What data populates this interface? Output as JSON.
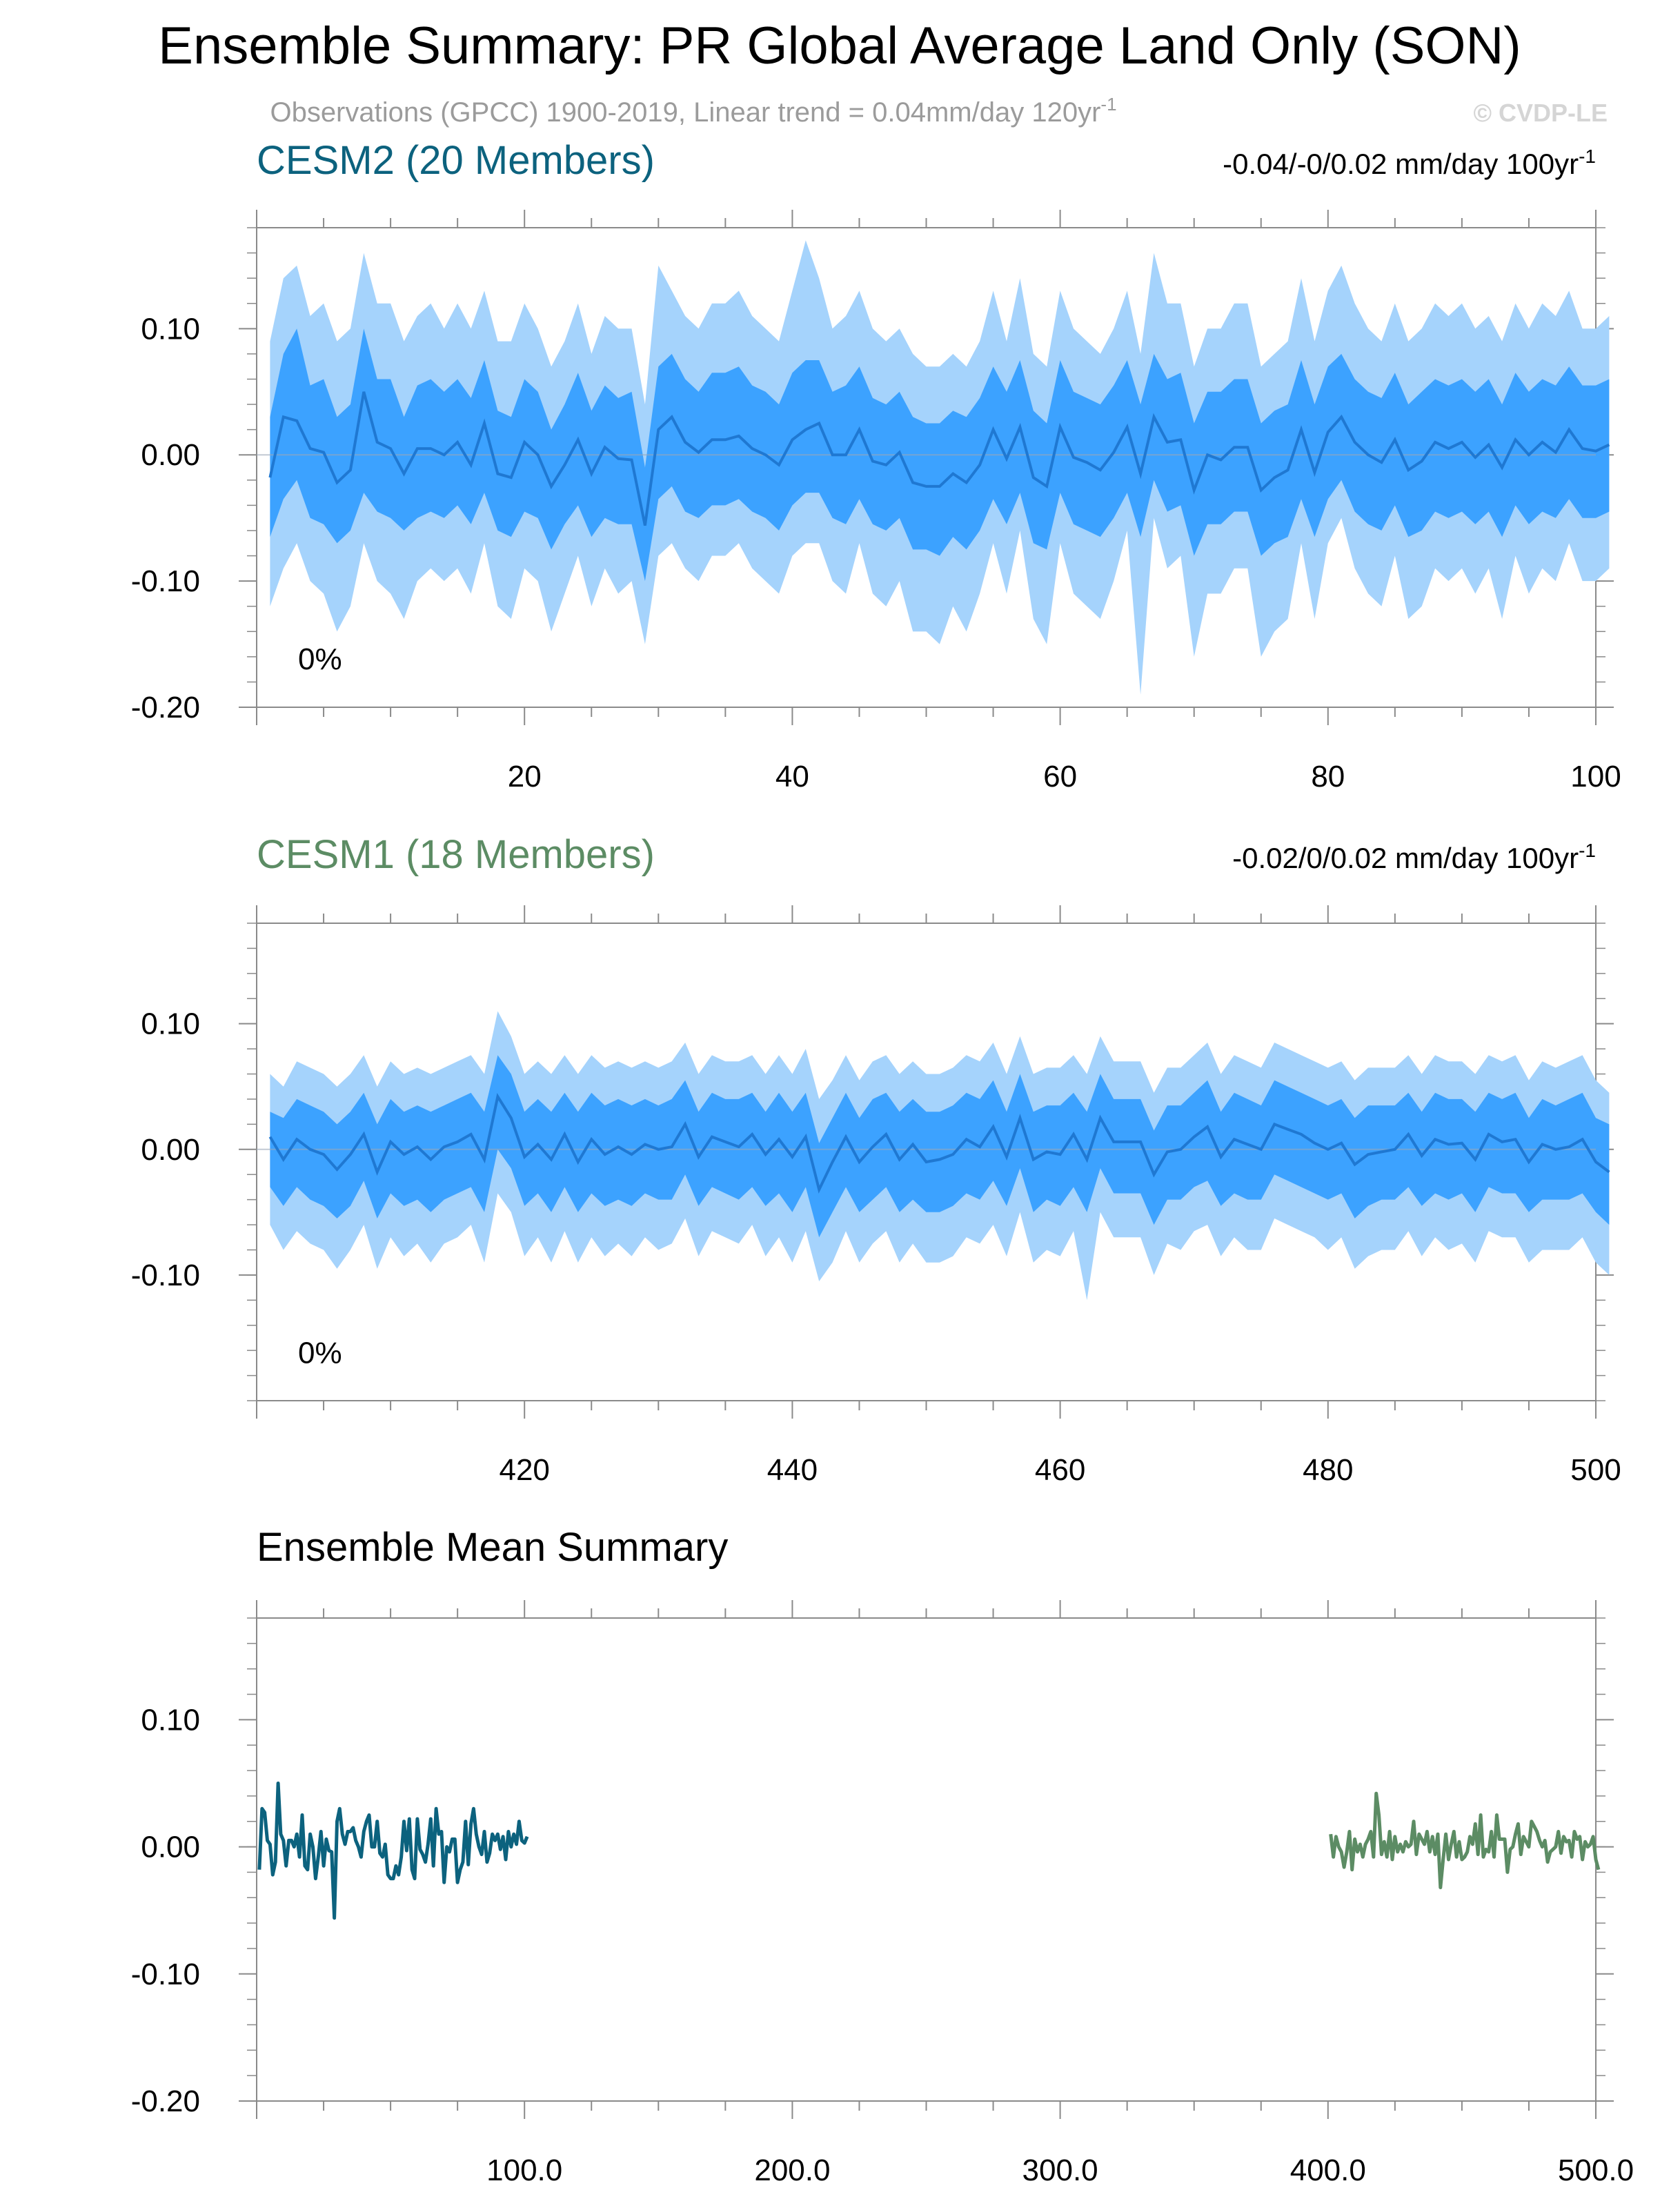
{
  "figure": {
    "title": "Ensemble Summary: PR Global Average Land Only (SON)",
    "subtitle": "Observations (GPCC) 1900-2019, Linear trend = 0.04mm/day 120yr",
    "subtitle_sup": "-1",
    "watermark": "© CVDP-LE"
  },
  "colors": {
    "outer_band": "#a5d3fc",
    "inner_band": "#3ca2ff",
    "mean_line": "#1f78d2",
    "cesm2": "#0c627e",
    "cesm1": "#5c8c64",
    "zero_line": "#9aa8b8"
  },
  "chart_data": [
    {
      "type": "area",
      "name": "CESM2 (20 Members)",
      "panel_title": "CESM2 (20 Members)",
      "trend_label": "-0.04/-0/0.02 mm/day 100yr",
      "trend_sup": "-1",
      "percent_label": "0%",
      "xlim": [
        0,
        100
      ],
      "ylim": [
        -0.2,
        0.18
      ],
      "xticks": [
        20,
        40,
        60,
        80,
        100
      ],
      "xtick_labels": [
        "20",
        "40",
        "60",
        "80",
        "100"
      ],
      "yticks": [
        -0.2,
        -0.1,
        0.0,
        0.1
      ],
      "ytick_labels": [
        "-0.20",
        "-0.10",
        "0.00",
        "0.10"
      ],
      "x_start": 1,
      "mean": [
        -0.018,
        0.03,
        0.027,
        0.005,
        0.002,
        -0.022,
        -0.012,
        0.05,
        0.01,
        0.005,
        -0.015,
        0.005,
        0.005,
        0.0,
        0.01,
        -0.008,
        0.025,
        -0.015,
        -0.018,
        0.01,
        0.0,
        -0.025,
        -0.008,
        0.012,
        -0.015,
        0.006,
        -0.003,
        -0.004,
        -0.056,
        0.02,
        0.03,
        0.01,
        0.002,
        0.012,
        0.012,
        0.015,
        0.005,
        0.0,
        -0.008,
        0.012,
        0.02,
        0.025,
        0.0,
        0.0,
        0.02,
        -0.005,
        -0.008,
        0.002,
        -0.022,
        -0.025,
        -0.025,
        -0.015,
        -0.022,
        -0.008,
        0.02,
        -0.003,
        0.022,
        -0.018,
        -0.025,
        0.022,
        -0.002,
        -0.006,
        -0.012,
        0.002,
        0.022,
        -0.015,
        0.03,
        0.01,
        0.012,
        -0.028,
        0.0,
        -0.004,
        0.006,
        0.006,
        -0.028,
        -0.018,
        -0.012,
        0.02,
        -0.014,
        0.018,
        0.03,
        0.01,
        0.0,
        -0.006,
        0.012,
        -0.012,
        -0.005,
        0.01,
        0.005,
        0.01,
        -0.002,
        0.008,
        -0.01,
        0.012,
        0.0,
        0.01,
        0.002,
        0.02,
        0.005,
        0.003,
        0.008
      ],
      "p25": [
        -0.065,
        -0.035,
        -0.02,
        -0.05,
        -0.055,
        -0.07,
        -0.06,
        -0.03,
        -0.045,
        -0.05,
        -0.06,
        -0.05,
        -0.045,
        -0.05,
        -0.04,
        -0.055,
        -0.03,
        -0.06,
        -0.065,
        -0.045,
        -0.05,
        -0.075,
        -0.055,
        -0.04,
        -0.065,
        -0.05,
        -0.055,
        -0.055,
        -0.1,
        -0.035,
        -0.025,
        -0.045,
        -0.05,
        -0.04,
        -0.04,
        -0.035,
        -0.045,
        -0.05,
        -0.06,
        -0.04,
        -0.03,
        -0.03,
        -0.05,
        -0.055,
        -0.035,
        -0.055,
        -0.06,
        -0.05,
        -0.075,
        -0.075,
        -0.08,
        -0.065,
        -0.075,
        -0.06,
        -0.035,
        -0.055,
        -0.03,
        -0.07,
        -0.075,
        -0.03,
        -0.055,
        -0.06,
        -0.065,
        -0.05,
        -0.03,
        -0.065,
        -0.02,
        -0.045,
        -0.04,
        -0.08,
        -0.055,
        -0.055,
        -0.045,
        -0.045,
        -0.08,
        -0.07,
        -0.065,
        -0.035,
        -0.065,
        -0.035,
        -0.02,
        -0.045,
        -0.055,
        -0.06,
        -0.04,
        -0.065,
        -0.06,
        -0.045,
        -0.05,
        -0.045,
        -0.055,
        -0.045,
        -0.065,
        -0.04,
        -0.055,
        -0.045,
        -0.05,
        -0.035,
        -0.05,
        -0.05,
        -0.045
      ],
      "p75": [
        0.03,
        0.08,
        0.1,
        0.055,
        0.06,
        0.03,
        0.04,
        0.1,
        0.06,
        0.06,
        0.03,
        0.055,
        0.06,
        0.05,
        0.06,
        0.045,
        0.075,
        0.035,
        0.03,
        0.06,
        0.05,
        0.02,
        0.04,
        0.065,
        0.035,
        0.055,
        0.045,
        0.05,
        -0.01,
        0.07,
        0.08,
        0.06,
        0.05,
        0.065,
        0.065,
        0.07,
        0.055,
        0.05,
        0.04,
        0.065,
        0.075,
        0.075,
        0.05,
        0.055,
        0.07,
        0.045,
        0.04,
        0.05,
        0.03,
        0.025,
        0.025,
        0.035,
        0.03,
        0.045,
        0.07,
        0.05,
        0.075,
        0.035,
        0.025,
        0.075,
        0.05,
        0.045,
        0.04,
        0.055,
        0.075,
        0.04,
        0.08,
        0.06,
        0.065,
        0.025,
        0.05,
        0.05,
        0.06,
        0.06,
        0.025,
        0.035,
        0.04,
        0.075,
        0.04,
        0.07,
        0.08,
        0.06,
        0.05,
        0.045,
        0.065,
        0.04,
        0.05,
        0.06,
        0.055,
        0.06,
        0.05,
        0.06,
        0.04,
        0.065,
        0.05,
        0.06,
        0.055,
        0.07,
        0.055,
        0.055,
        0.06
      ],
      "p05": [
        -0.12,
        -0.09,
        -0.07,
        -0.1,
        -0.11,
        -0.14,
        -0.12,
        -0.07,
        -0.1,
        -0.11,
        -0.13,
        -0.1,
        -0.09,
        -0.1,
        -0.09,
        -0.11,
        -0.07,
        -0.12,
        -0.13,
        -0.09,
        -0.1,
        -0.14,
        -0.11,
        -0.08,
        -0.12,
        -0.09,
        -0.11,
        -0.1,
        -0.15,
        -0.08,
        -0.07,
        -0.09,
        -0.1,
        -0.08,
        -0.08,
        -0.07,
        -0.09,
        -0.1,
        -0.11,
        -0.08,
        -0.07,
        -0.07,
        -0.1,
        -0.11,
        -0.07,
        -0.11,
        -0.12,
        -0.1,
        -0.14,
        -0.14,
        -0.15,
        -0.12,
        -0.14,
        -0.11,
        -0.07,
        -0.11,
        -0.06,
        -0.13,
        -0.15,
        -0.07,
        -0.11,
        -0.12,
        -0.13,
        -0.1,
        -0.06,
        -0.19,
        -0.05,
        -0.09,
        -0.08,
        -0.16,
        -0.11,
        -0.11,
        -0.09,
        -0.09,
        -0.16,
        -0.14,
        -0.13,
        -0.07,
        -0.13,
        -0.07,
        -0.05,
        -0.09,
        -0.11,
        -0.12,
        -0.08,
        -0.13,
        -0.12,
        -0.09,
        -0.1,
        -0.09,
        -0.11,
        -0.09,
        -0.13,
        -0.08,
        -0.11,
        -0.09,
        -0.1,
        -0.07,
        -0.1,
        -0.1,
        -0.09
      ],
      "p95": [
        0.09,
        0.14,
        0.15,
        0.11,
        0.12,
        0.09,
        0.1,
        0.16,
        0.12,
        0.12,
        0.09,
        0.11,
        0.12,
        0.1,
        0.12,
        0.1,
        0.13,
        0.09,
        0.09,
        0.12,
        0.1,
        0.07,
        0.09,
        0.12,
        0.08,
        0.11,
        0.1,
        0.1,
        0.04,
        0.15,
        0.13,
        0.11,
        0.1,
        0.12,
        0.12,
        0.13,
        0.11,
        0.1,
        0.09,
        0.13,
        0.17,
        0.14,
        0.1,
        0.11,
        0.13,
        0.1,
        0.09,
        0.1,
        0.08,
        0.07,
        0.07,
        0.08,
        0.07,
        0.09,
        0.13,
        0.09,
        0.14,
        0.08,
        0.07,
        0.13,
        0.1,
        0.09,
        0.08,
        0.1,
        0.13,
        0.08,
        0.16,
        0.12,
        0.12,
        0.07,
        0.1,
        0.1,
        0.12,
        0.12,
        0.07,
        0.08,
        0.09,
        0.14,
        0.09,
        0.13,
        0.15,
        0.12,
        0.1,
        0.09,
        0.12,
        0.09,
        0.1,
        0.12,
        0.11,
        0.12,
        0.1,
        0.11,
        0.09,
        0.12,
        0.1,
        0.12,
        0.11,
        0.13,
        0.1,
        0.1,
        0.11
      ]
    },
    {
      "type": "area",
      "name": "CESM1 (18 Members)",
      "panel_title": "CESM1 (18 Members)",
      "trend_label": "-0.02/0/0.02 mm/day 100yr",
      "trend_sup": "-1",
      "percent_label": "0%",
      "xlim": [
        400,
        500
      ],
      "ylim": [
        -0.2,
        0.18
      ],
      "xticks": [
        420,
        440,
        460,
        480,
        500
      ],
      "xtick_labels": [
        "420",
        "440",
        "460",
        "480",
        "500"
      ],
      "yticks": [
        -0.1,
        0.0,
        0.1
      ],
      "ytick_labels": [
        "-0.10",
        "0.00",
        "0.10"
      ],
      "x_start": 401,
      "mean": [
        0.01,
        -0.008,
        0.008,
        0.0,
        -0.004,
        -0.016,
        -0.004,
        0.012,
        -0.018,
        0.006,
        -0.004,
        0.002,
        -0.008,
        0.002,
        0.006,
        0.012,
        -0.008,
        0.042,
        0.025,
        -0.006,
        0.004,
        -0.008,
        0.012,
        -0.01,
        0.008,
        -0.004,
        0.002,
        -0.004,
        0.004,
        0.0,
        0.002,
        0.02,
        -0.006,
        0.01,
        0.006,
        0.002,
        0.012,
        -0.004,
        0.008,
        -0.006,
        0.01,
        -0.032,
        -0.01,
        0.01,
        -0.01,
        0.002,
        0.012,
        -0.008,
        0.004,
        -0.01,
        -0.008,
        -0.004,
        0.008,
        0.002,
        0.018,
        -0.006,
        0.025,
        -0.008,
        -0.002,
        -0.004,
        0.012,
        -0.008,
        0.025,
        0.006,
        0.006,
        0.006,
        -0.02,
        -0.002,
        0.0,
        0.01,
        0.018,
        -0.006,
        0.008,
        0.004,
        0.0,
        0.02,
        0.016,
        0.012,
        0.005,
        0.0,
        0.005,
        -0.012,
        -0.004,
        -0.002,
        0.0,
        0.012,
        -0.005,
        0.008,
        0.004,
        0.005,
        -0.008,
        0.012,
        0.006,
        0.008,
        -0.01,
        0.004,
        0.0,
        0.002,
        0.008,
        -0.01,
        -0.018
      ],
      "p25": [
        -0.03,
        -0.045,
        -0.03,
        -0.04,
        -0.045,
        -0.055,
        -0.045,
        -0.025,
        -0.055,
        -0.035,
        -0.045,
        -0.04,
        -0.05,
        -0.04,
        -0.035,
        -0.03,
        -0.05,
        0.0,
        -0.015,
        -0.045,
        -0.035,
        -0.05,
        -0.03,
        -0.05,
        -0.035,
        -0.045,
        -0.04,
        -0.045,
        -0.035,
        -0.04,
        -0.04,
        -0.02,
        -0.045,
        -0.03,
        -0.035,
        -0.04,
        -0.03,
        -0.045,
        -0.035,
        -0.05,
        -0.03,
        -0.07,
        -0.05,
        -0.03,
        -0.05,
        -0.04,
        -0.03,
        -0.05,
        -0.04,
        -0.05,
        -0.05,
        -0.045,
        -0.035,
        -0.04,
        -0.025,
        -0.045,
        -0.015,
        -0.05,
        -0.04,
        -0.045,
        -0.03,
        -0.05,
        -0.015,
        -0.035,
        -0.035,
        -0.035,
        -0.06,
        -0.04,
        -0.04,
        -0.03,
        -0.025,
        -0.045,
        -0.035,
        -0.04,
        -0.04,
        -0.02,
        -0.025,
        -0.03,
        -0.035,
        -0.04,
        -0.035,
        -0.055,
        -0.045,
        -0.04,
        -0.04,
        -0.03,
        -0.045,
        -0.035,
        -0.04,
        -0.035,
        -0.05,
        -0.03,
        -0.035,
        -0.035,
        -0.05,
        -0.04,
        -0.04,
        -0.04,
        -0.035,
        -0.05,
        -0.06
      ],
      "p75": [
        0.03,
        0.025,
        0.04,
        0.035,
        0.03,
        0.02,
        0.03,
        0.045,
        0.02,
        0.04,
        0.03,
        0.035,
        0.03,
        0.035,
        0.04,
        0.045,
        0.03,
        0.075,
        0.06,
        0.03,
        0.04,
        0.03,
        0.045,
        0.03,
        0.045,
        0.035,
        0.04,
        0.035,
        0.04,
        0.035,
        0.04,
        0.055,
        0.03,
        0.045,
        0.04,
        0.04,
        0.045,
        0.03,
        0.045,
        0.03,
        0.045,
        0.005,
        0.025,
        0.045,
        0.025,
        0.04,
        0.045,
        0.03,
        0.04,
        0.03,
        0.03,
        0.035,
        0.045,
        0.04,
        0.055,
        0.03,
        0.06,
        0.03,
        0.035,
        0.035,
        0.045,
        0.03,
        0.06,
        0.04,
        0.04,
        0.04,
        0.015,
        0.035,
        0.035,
        0.045,
        0.055,
        0.03,
        0.045,
        0.04,
        0.035,
        0.055,
        0.05,
        0.045,
        0.04,
        0.035,
        0.04,
        0.025,
        0.035,
        0.035,
        0.035,
        0.045,
        0.03,
        0.045,
        0.04,
        0.04,
        0.03,
        0.045,
        0.04,
        0.045,
        0.025,
        0.04,
        0.035,
        0.04,
        0.045,
        0.025,
        0.02
      ],
      "p05": [
        -0.06,
        -0.08,
        -0.065,
        -0.075,
        -0.08,
        -0.095,
        -0.08,
        -0.06,
        -0.095,
        -0.07,
        -0.085,
        -0.075,
        -0.09,
        -0.075,
        -0.07,
        -0.06,
        -0.09,
        -0.035,
        -0.05,
        -0.085,
        -0.07,
        -0.09,
        -0.065,
        -0.09,
        -0.07,
        -0.085,
        -0.075,
        -0.085,
        -0.07,
        -0.08,
        -0.075,
        -0.055,
        -0.085,
        -0.065,
        -0.07,
        -0.075,
        -0.06,
        -0.085,
        -0.07,
        -0.09,
        -0.065,
        -0.105,
        -0.09,
        -0.065,
        -0.09,
        -0.075,
        -0.065,
        -0.09,
        -0.075,
        -0.09,
        -0.09,
        -0.085,
        -0.07,
        -0.075,
        -0.06,
        -0.085,
        -0.05,
        -0.09,
        -0.08,
        -0.085,
        -0.065,
        -0.12,
        -0.05,
        -0.07,
        -0.07,
        -0.07,
        -0.1,
        -0.075,
        -0.08,
        -0.065,
        -0.06,
        -0.085,
        -0.07,
        -0.08,
        -0.08,
        -0.055,
        -0.06,
        -0.065,
        -0.07,
        -0.08,
        -0.07,
        -0.095,
        -0.085,
        -0.08,
        -0.08,
        -0.065,
        -0.085,
        -0.07,
        -0.08,
        -0.075,
        -0.09,
        -0.065,
        -0.07,
        -0.07,
        -0.09,
        -0.08,
        -0.08,
        -0.08,
        -0.07,
        -0.09,
        -0.1
      ],
      "p95": [
        0.06,
        0.05,
        0.07,
        0.065,
        0.06,
        0.05,
        0.06,
        0.075,
        0.05,
        0.07,
        0.06,
        0.065,
        0.06,
        0.065,
        0.07,
        0.075,
        0.06,
        0.11,
        0.09,
        0.06,
        0.07,
        0.06,
        0.075,
        0.06,
        0.075,
        0.065,
        0.07,
        0.065,
        0.07,
        0.065,
        0.07,
        0.085,
        0.06,
        0.075,
        0.07,
        0.07,
        0.075,
        0.06,
        0.075,
        0.06,
        0.08,
        0.04,
        0.055,
        0.075,
        0.055,
        0.07,
        0.075,
        0.06,
        0.07,
        0.06,
        0.06,
        0.065,
        0.075,
        0.07,
        0.085,
        0.06,
        0.09,
        0.06,
        0.065,
        0.065,
        0.075,
        0.06,
        0.09,
        0.07,
        0.07,
        0.07,
        0.045,
        0.065,
        0.065,
        0.075,
        0.085,
        0.06,
        0.075,
        0.07,
        0.065,
        0.085,
        0.08,
        0.075,
        0.07,
        0.065,
        0.07,
        0.055,
        0.065,
        0.065,
        0.065,
        0.075,
        0.06,
        0.075,
        0.07,
        0.07,
        0.06,
        0.075,
        0.07,
        0.075,
        0.055,
        0.07,
        0.065,
        0.07,
        0.075,
        0.055,
        0.045
      ]
    },
    {
      "type": "line",
      "name": "Ensemble Mean Summary",
      "panel_title": "Ensemble Mean Summary",
      "xlim": [
        0,
        500
      ],
      "ylim": [
        -0.2,
        0.18
      ],
      "xticks": [
        100,
        200,
        300,
        400,
        500
      ],
      "xtick_labels": [
        "100.0",
        "200.0",
        "300.0",
        "400.0",
        "500.0"
      ],
      "yticks": [
        -0.2,
        -0.1,
        0.0,
        0.1
      ],
      "ytick_labels": [
        "-0.20",
        "-0.10",
        "0.00",
        "0.10"
      ],
      "series": [
        {
          "ref": 0,
          "x_start": 1,
          "color_key": "cesm2"
        },
        {
          "ref": 1,
          "x_start": 401,
          "color_key": "cesm1"
        }
      ]
    }
  ]
}
